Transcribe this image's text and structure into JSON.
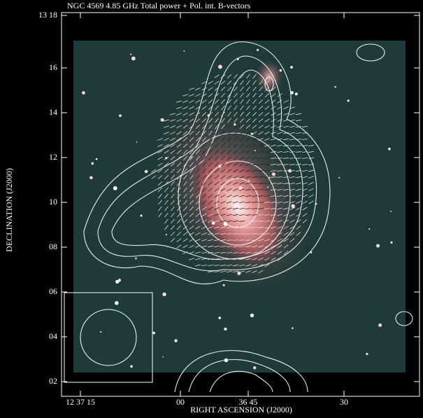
{
  "figure": {
    "title": "NGC 4569 4.85 GHz Total power + Pol. int. B-vectors",
    "y_axis": {
      "label": "DECLINATION (J2000)",
      "ticks": [
        "13 18",
        "16",
        "14",
        "12",
        "10",
        "08",
        "06",
        "04",
        "02"
      ]
    },
    "x_axis": {
      "label": "RIGHT ASCENSION (J2000)",
      "ticks": [
        "12 37 15",
        "00",
        "36 45",
        "30"
      ]
    }
  }
}
